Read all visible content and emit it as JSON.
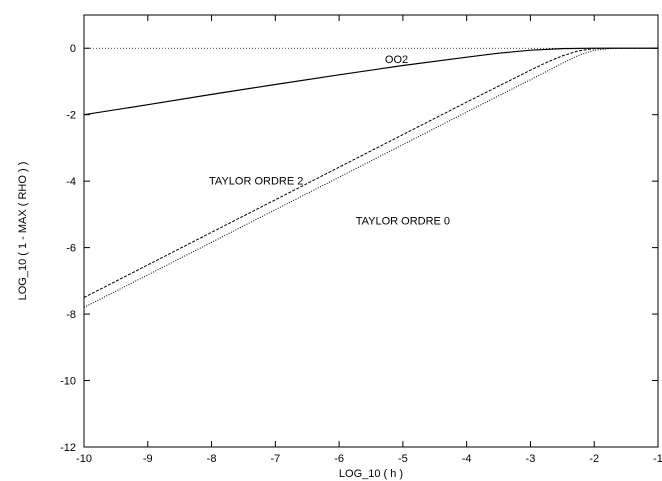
{
  "chart_data": {
    "type": "line",
    "xlabel": "LOG_10 ( h )",
    "ylabel": "LOG_10 ( 1 - MAX ( RHO ) )",
    "xlim": [
      -10,
      -1
    ],
    "ylim": [
      -12,
      1
    ],
    "xticks": [
      -10,
      -9,
      -8,
      -7,
      -6,
      -5,
      -4,
      -3,
      -2,
      -1
    ],
    "yticks": [
      -12,
      -10,
      -8,
      -6,
      -4,
      -2,
      0
    ],
    "grid": false,
    "reference_line": {
      "y": 0,
      "style": "dotted"
    },
    "series": [
      {
        "label": "OO2",
        "style": "solid",
        "x": [
          -10,
          -9,
          -8,
          -7,
          -6,
          -5,
          -4,
          -3.5,
          -3,
          -2.5,
          -2,
          -1.5,
          -1
        ],
        "y": [
          -2.0,
          -1.7,
          -1.39,
          -1.09,
          -0.8,
          -0.52,
          -0.27,
          -0.15,
          -0.06,
          -0.01,
          0,
          0,
          0
        ]
      },
      {
        "label": "TAYLOR ORDRE 2",
        "style": "dashed",
        "x": [
          -10,
          -9,
          -8,
          -7,
          -6,
          -5,
          -4,
          -3.5,
          -3,
          -2.75,
          -2.5,
          -2.25,
          -2,
          -1.75,
          -1.5,
          -1.25,
          -1
        ],
        "y": [
          -7.5,
          -6.52,
          -5.54,
          -4.56,
          -3.58,
          -2.6,
          -1.62,
          -1.14,
          -0.66,
          -0.43,
          -0.23,
          -0.08,
          -0.01,
          0,
          0,
          0,
          0
        ]
      },
      {
        "label": "TAYLOR ORDRE 0",
        "style": "dotted",
        "x": [
          -10,
          -9,
          -8,
          -7,
          -6,
          -5,
          -4,
          -3.5,
          -3,
          -2.75,
          -2.5,
          -2.25,
          -2,
          -1.75,
          -1.5,
          -1.25,
          -1
        ],
        "y": [
          -7.8,
          -6.82,
          -5.84,
          -4.86,
          -3.88,
          -2.9,
          -1.92,
          -1.43,
          -0.95,
          -0.7,
          -0.45,
          -0.22,
          -0.06,
          -0.01,
          0,
          0,
          0
        ]
      }
    ],
    "annotations": [
      {
        "text": "OO2",
        "x": -5.1,
        "y": -0.45
      },
      {
        "text": "TAYLOR ORDRE 2",
        "x": -7.3,
        "y": -4.1
      },
      {
        "text": "TAYLOR ORDRE 0",
        "x": -5.0,
        "y": -5.3
      }
    ]
  }
}
